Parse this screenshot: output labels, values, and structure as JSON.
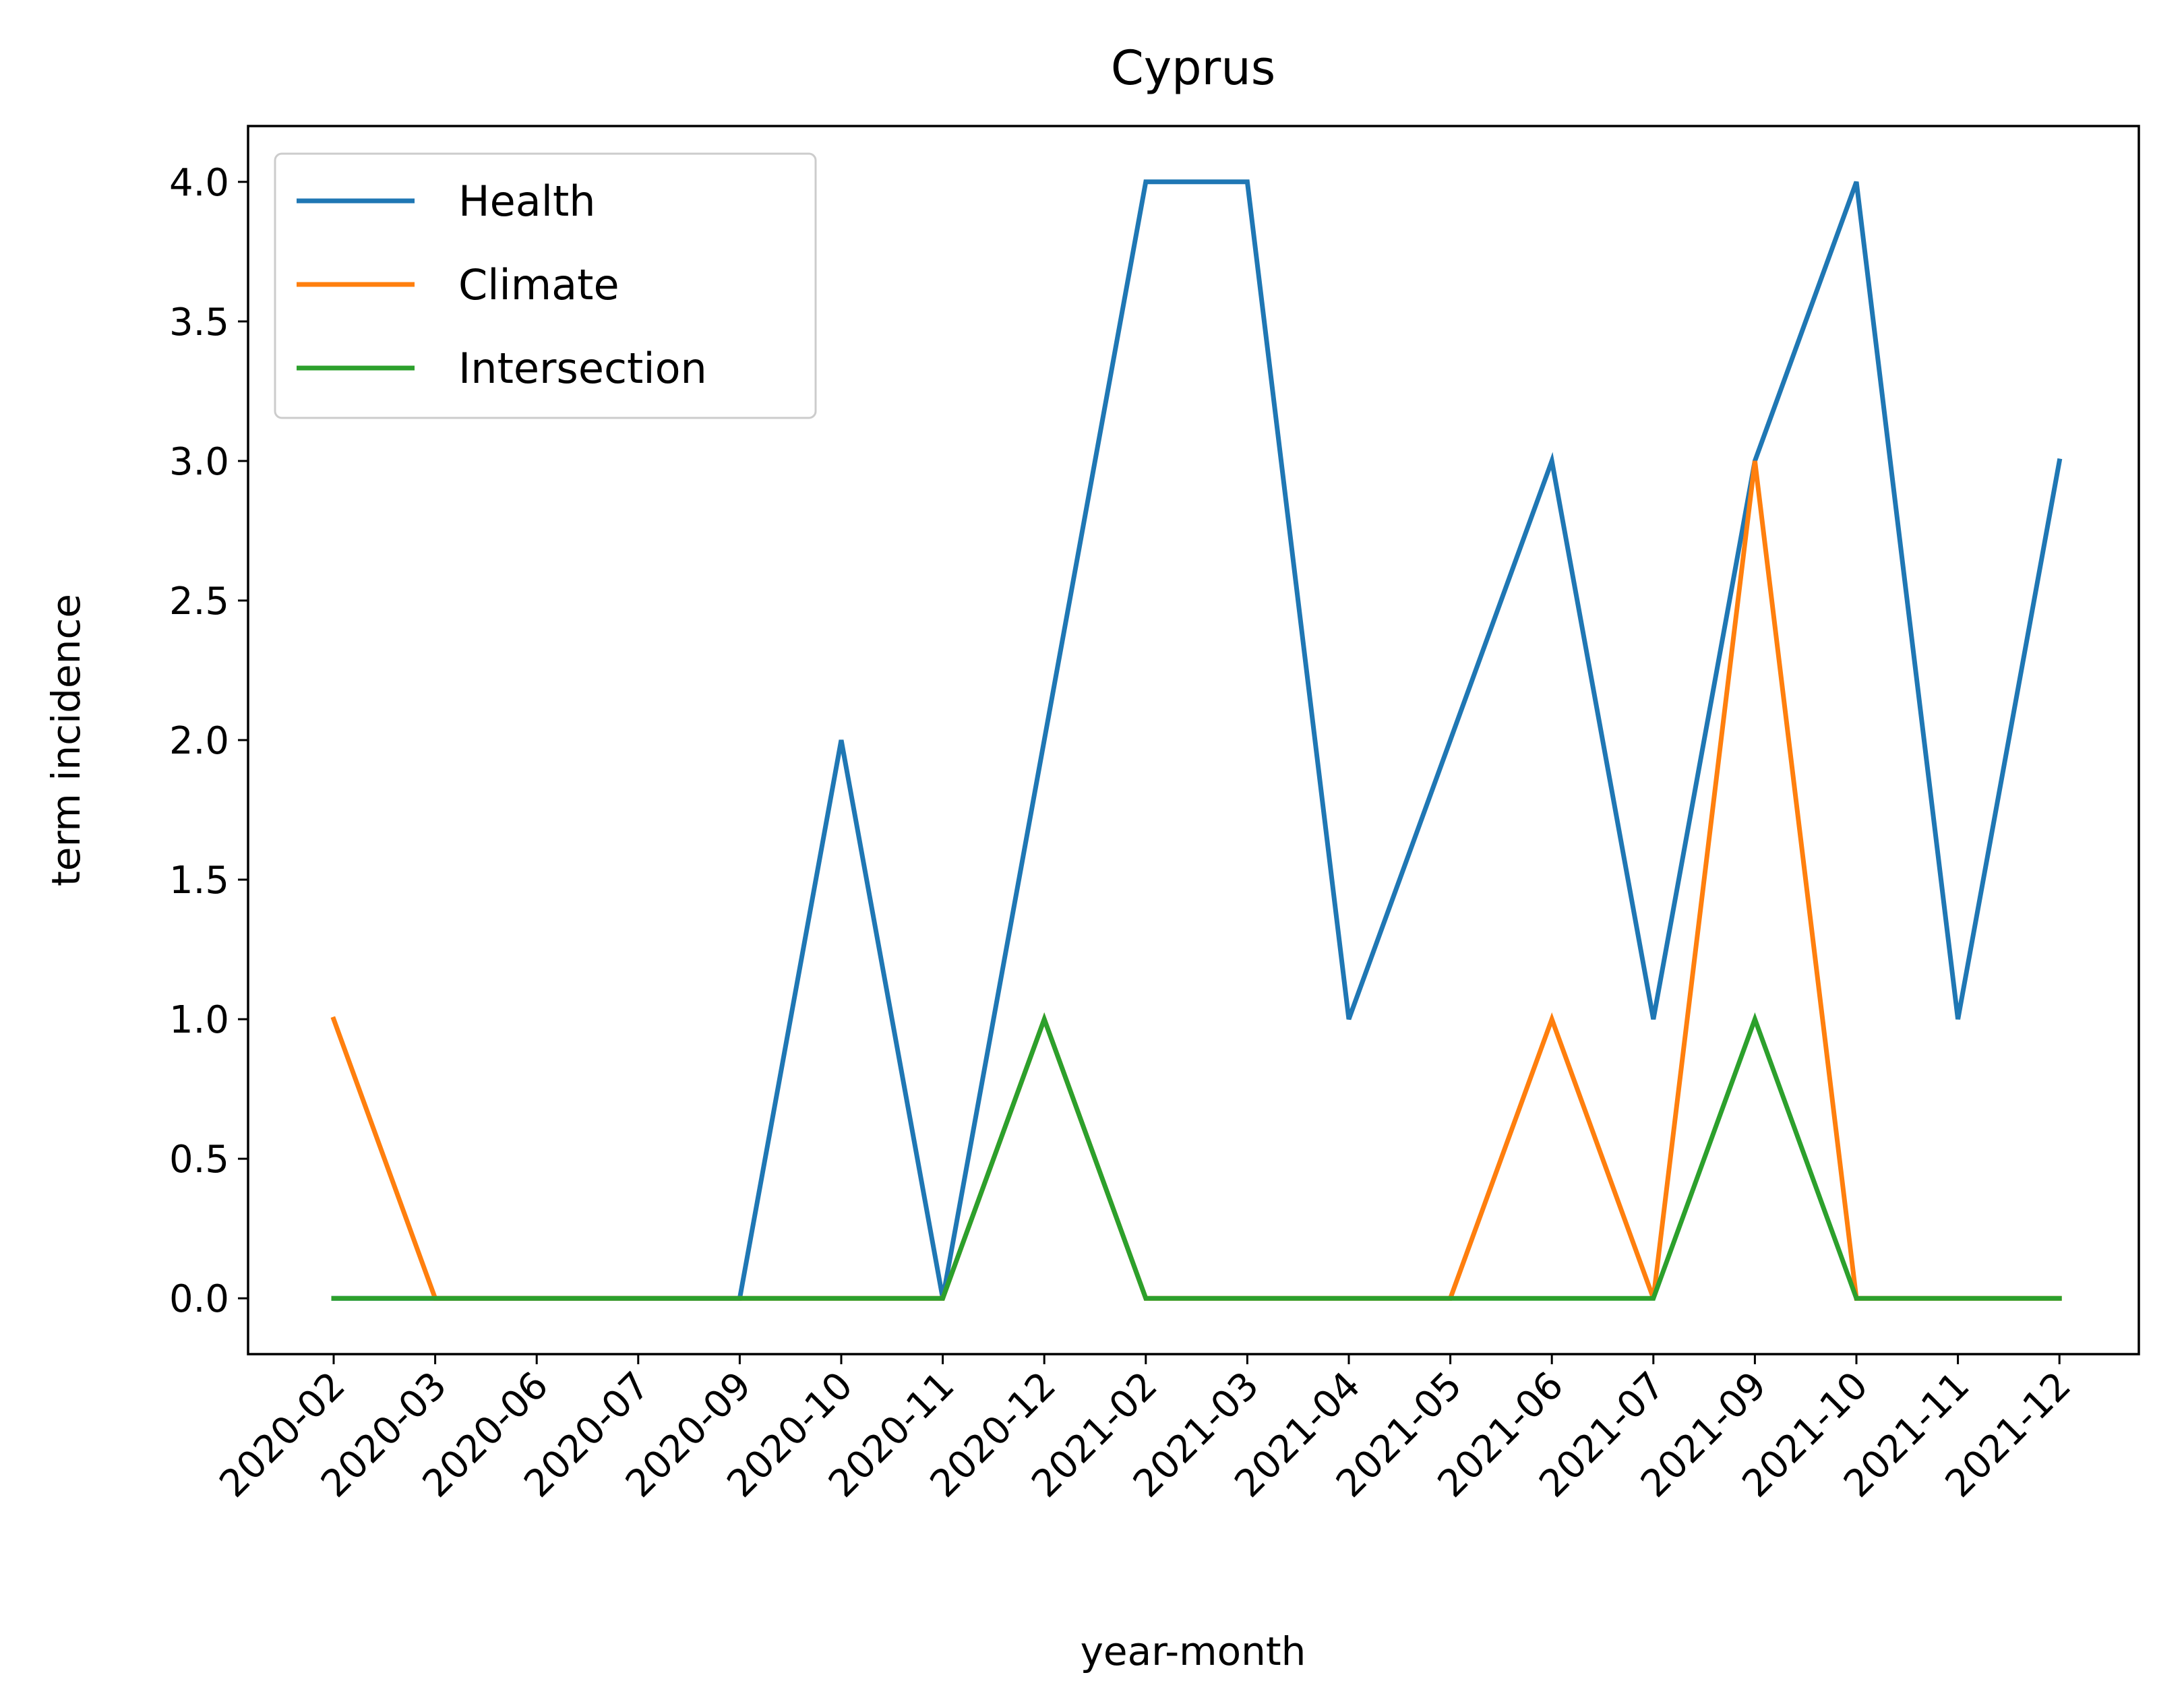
{
  "chart_data": {
    "type": "line",
    "title": "Cyprus",
    "xlabel": "year-month",
    "ylabel": "term incidence",
    "categories": [
      "2020-02",
      "2020-03",
      "2020-06",
      "2020-07",
      "2020-09",
      "2020-10",
      "2020-11",
      "2020-12",
      "2021-02",
      "2021-03",
      "2021-04",
      "2021-05",
      "2021-06",
      "2021-07",
      "2021-09",
      "2021-10",
      "2021-11",
      "2021-12"
    ],
    "ylim": [
      -0.2,
      4.2
    ],
    "yticks": [
      "0.0",
      "0.5",
      "1.0",
      "1.5",
      "2.0",
      "2.5",
      "3.0",
      "3.5",
      "4.0"
    ],
    "legend_position": "top-left",
    "grid": false,
    "series": [
      {
        "name": "Health",
        "color": "#1f77b4",
        "values": [
          0,
          0,
          0,
          0,
          0,
          2,
          0,
          2,
          4,
          4,
          1,
          2,
          3,
          1,
          3,
          4,
          1,
          3
        ]
      },
      {
        "name": "Climate",
        "color": "#ff7f0e",
        "values": [
          1,
          0,
          0,
          0,
          0,
          0,
          0,
          1,
          0,
          0,
          0,
          0,
          1,
          0,
          3,
          0,
          0,
          0
        ]
      },
      {
        "name": "Intersection",
        "color": "#2ca02c",
        "values": [
          0,
          0,
          0,
          0,
          0,
          0,
          0,
          1,
          0,
          0,
          0,
          0,
          0,
          0,
          1,
          0,
          0,
          0
        ]
      }
    ]
  }
}
